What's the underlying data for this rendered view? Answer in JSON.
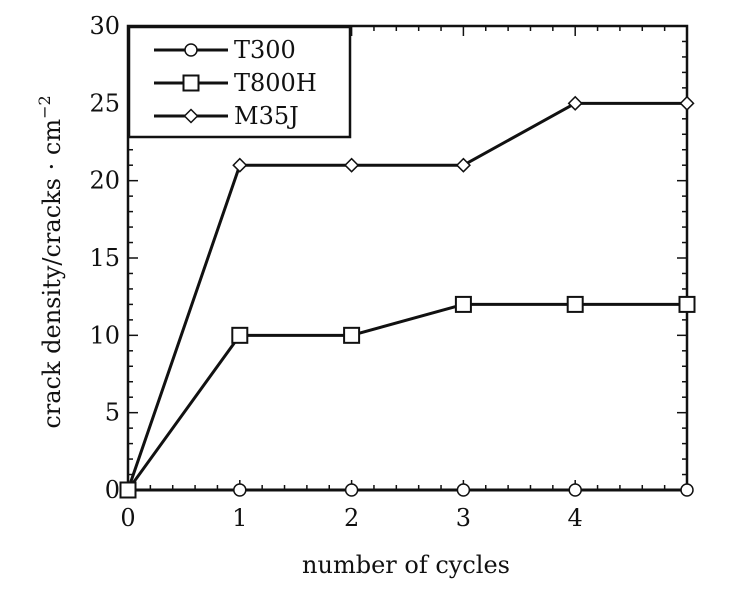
{
  "chart_data": {
    "type": "line",
    "xlabel": "number of cycles",
    "ylabel": "crack density/cracks · cm",
    "ylabel_superscript": "−2",
    "x_ticks": [
      0,
      1,
      2,
      3,
      4
    ],
    "y_ticks": [
      0,
      5,
      10,
      15,
      20,
      25,
      30
    ],
    "xlim": [
      0,
      5
    ],
    "ylim": [
      0,
      30
    ],
    "grid": false,
    "legend_position": "top-left",
    "series": [
      {
        "name": "T300",
        "marker": "circle",
        "x": [
          0,
          1,
          2,
          3,
          4,
          5
        ],
        "y": [
          0,
          0,
          0,
          0,
          0,
          0
        ]
      },
      {
        "name": "T800H",
        "marker": "square",
        "x": [
          0,
          1,
          2,
          3,
          4,
          5
        ],
        "y": [
          0,
          10,
          10,
          12,
          12,
          12
        ]
      },
      {
        "name": "M35J",
        "marker": "diamond",
        "x": [
          0,
          1,
          2,
          3,
          4,
          5
        ],
        "y": [
          0,
          21,
          21,
          21,
          25,
          25
        ]
      }
    ],
    "colors": {
      "line": "#111111",
      "background": "#ffffff"
    }
  }
}
